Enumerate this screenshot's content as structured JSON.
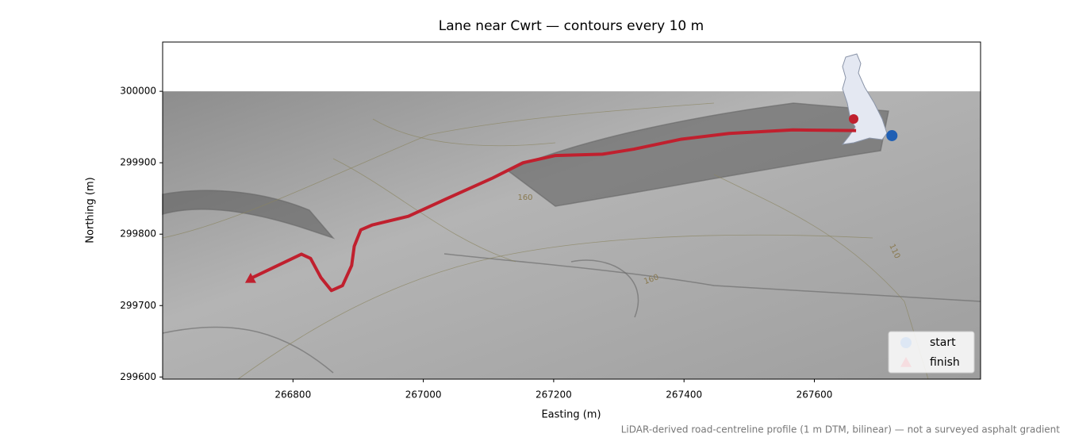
{
  "chart_data": {
    "type": "line",
    "title": "Lane near Cwrt — contours every 10 m",
    "x_label": "Easting (m)",
    "y_label": "Northing (m)",
    "footnote": "LiDAR-derived road-centreline profile (1 m DTM, bilinear) — not a surveyed asphalt gradient",
    "xlim": [
      266600,
      267855
    ],
    "ylim": [
      299597,
      300069
    ],
    "xticks": [
      266800,
      267000,
      267200,
      267400,
      267600
    ],
    "yticks": [
      299600,
      299700,
      299800,
      299900,
      300000
    ],
    "grid": false,
    "legend": "lower right",
    "route": {
      "color": "#c0202e",
      "x": [
        266735,
        266813,
        266827,
        266843,
        266859,
        266876,
        266890,
        266894,
        266904,
        266922,
        266977,
        267032,
        267105,
        267153,
        267202,
        267275,
        267323,
        267396,
        267469,
        267567,
        267664
      ],
      "y": [
        299738,
        299772,
        299766,
        299739,
        299721,
        299728,
        299756,
        299783,
        299806,
        299813,
        299825,
        299848,
        299878,
        299900,
        299910,
        299912,
        299919,
        299933,
        299941,
        299946,
        299945
      ]
    },
    "series": [
      {
        "name": "start",
        "color": "#1f5fb4",
        "marker": "circle",
        "x": [
          267719
        ],
        "values": [
          299938
        ]
      },
      {
        "name": "finish",
        "color": "#c0202e",
        "marker": "triangle",
        "x": [
          266735
        ],
        "values": [
          299738
        ]
      }
    ],
    "contour_labels": [
      "160",
      "160",
      "110"
    ]
  }
}
